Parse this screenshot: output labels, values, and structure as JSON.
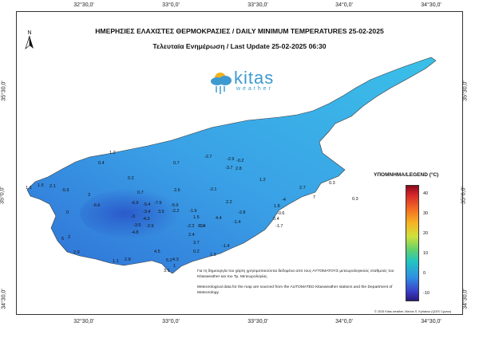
{
  "title_line1": "ΗΜΕΡΗΣΙΕΣ ΕΛΑΧΙΣΤΕΣ ΘΕΡΜΟΚΡΑΣΙΕΣ / DAILY MINIMUM TEMPERATURES 25-02-2025",
  "title_line2": "Τελευταία Ενημέρωση / Last Update 25-02-2025 06:30",
  "north_label": "N",
  "logo": {
    "name": "kitas",
    "sub": "weather"
  },
  "longitude_ticks": [
    "32°30,0'",
    "33°0,0'",
    "33°30,0'",
    "34°0,0'",
    "34°30,0'"
  ],
  "latitude_ticks": [
    "35°30,0'",
    "35°0,0'",
    "34°30,0'"
  ],
  "legend": {
    "title": "ΥΠΟΜΝΗΜΑ/LEGEND (°C)",
    "ticks": [
      "40",
      "30",
      "20",
      "10",
      "0",
      "-10"
    ]
  },
  "note_greek": "Για τη δημιουργία του χάρτη χρησιμοποιούνται δεδομένα από τους ΑΥΤΟΜΑΤΟΥΣ μετεωρολογικούς σταθμούς του Kitasweather και του Τμ. Μετεωρολογίας.",
  "note_english": "Meteorological data for the map are sourced from the AUTOMATED Kitasweather stations and the Department of Meteorology.",
  "copyright": "© 2025 Kitas weather, Marios S. Kyriakou (QGIS Cyprus)",
  "colors": {
    "sea": "#ffffff",
    "land_dark": "#2f6fd6",
    "land_light": "#3ab6e6",
    "logo": "#3d9ad1"
  },
  "station_values": [
    "1.2",
    "0.4",
    "0.2",
    "0.7",
    "-2.7",
    "-2.9",
    "-0.2",
    "-3.7",
    "2.8",
    "1.1",
    "1.5",
    "2.1",
    "-5.9",
    "3",
    "0.7",
    "2.6",
    "-2.1",
    "1.2",
    "0.3",
    "2.7",
    "7",
    "0.3",
    "0",
    "-6.6",
    "-6.9",
    "-5.4",
    "-7.9",
    "-5.9",
    "-3.4",
    "3.5",
    "-2.2",
    "-3",
    "-4.3",
    "-1.9",
    "1.5",
    "2.2",
    "0.1",
    "4.4",
    "-2.8",
    "-1.4",
    "-4",
    "1.8",
    "-0.6",
    "0.4",
    "-1.7",
    "-3.5",
    "-2.9",
    "-4.8",
    "-2.2",
    "0.4",
    "2.4",
    "5",
    "2",
    "2.9",
    "3.7",
    "0.2",
    "-1.4",
    "1.3",
    "4.5",
    "1.1",
    "2.8",
    "5.2",
    "4.3",
    "1",
    "3.1"
  ]
}
